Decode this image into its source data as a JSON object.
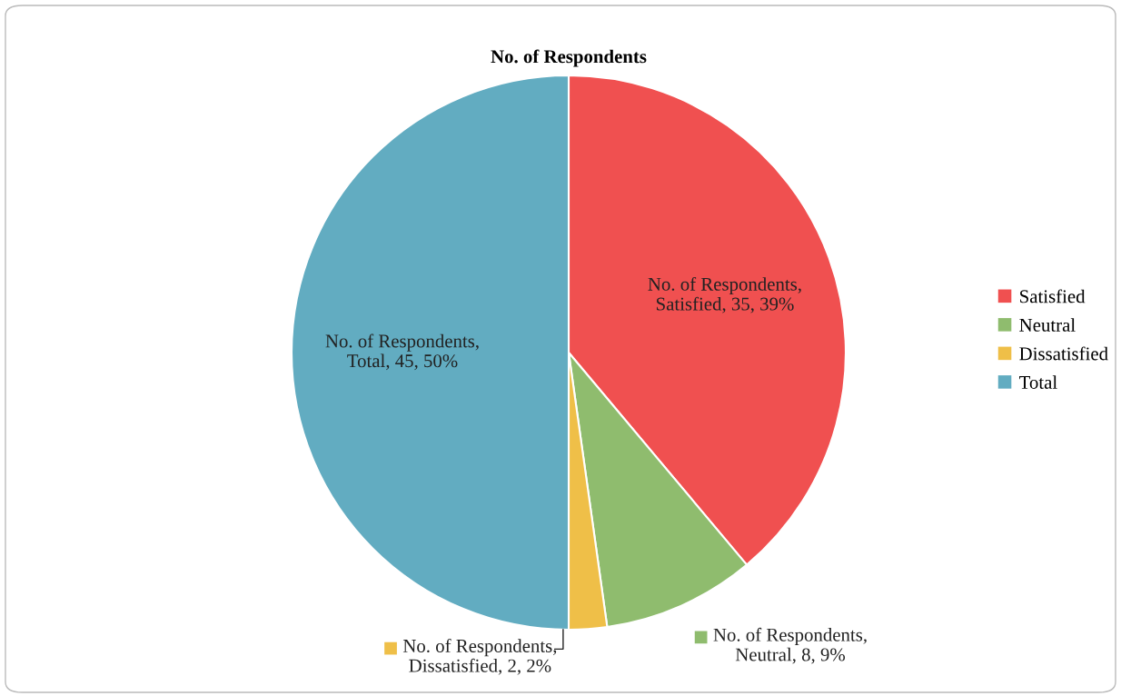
{
  "chart_data": {
    "type": "pie",
    "title": "No. of Respondents",
    "categories": [
      "Satisfied",
      "Neutral",
      "Dissatisfied",
      "Total"
    ],
    "values": [
      35,
      8,
      2,
      45
    ],
    "colors": [
      "#f05050",
      "#8fbc6e",
      "#efbf48",
      "#62acc1"
    ],
    "value_labels": [
      "No. of Respondents,\nSatisfied, 35, 39%",
      "No. of Respondents,\nNeutral, 8, 9%",
      "No. of Respondents,\nDissatisfied, 2, 2%",
      "No. of Respondents,\nTotal, 45, 50%"
    ],
    "legend": "right"
  }
}
